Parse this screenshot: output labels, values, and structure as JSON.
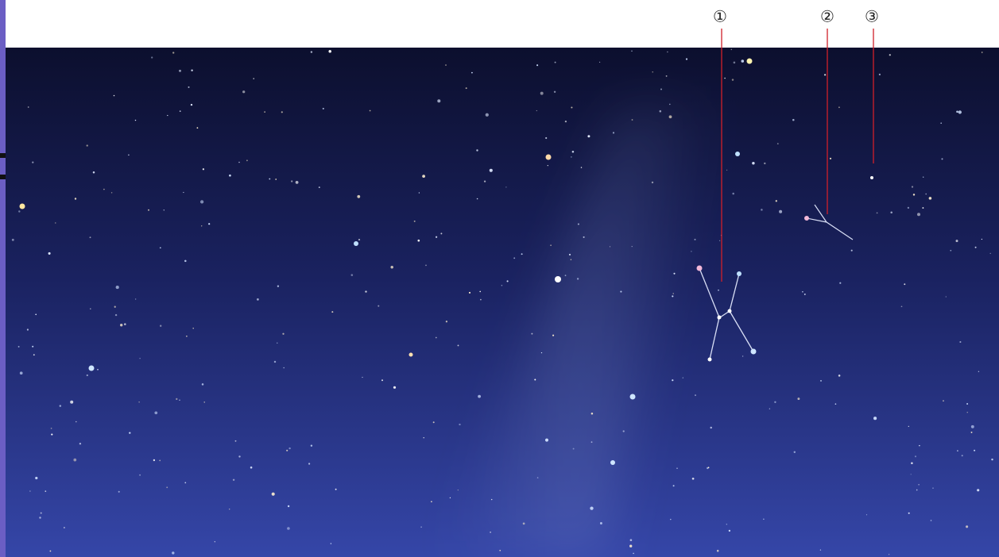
{
  "labels": [
    "①",
    "②",
    "③"
  ]
}
